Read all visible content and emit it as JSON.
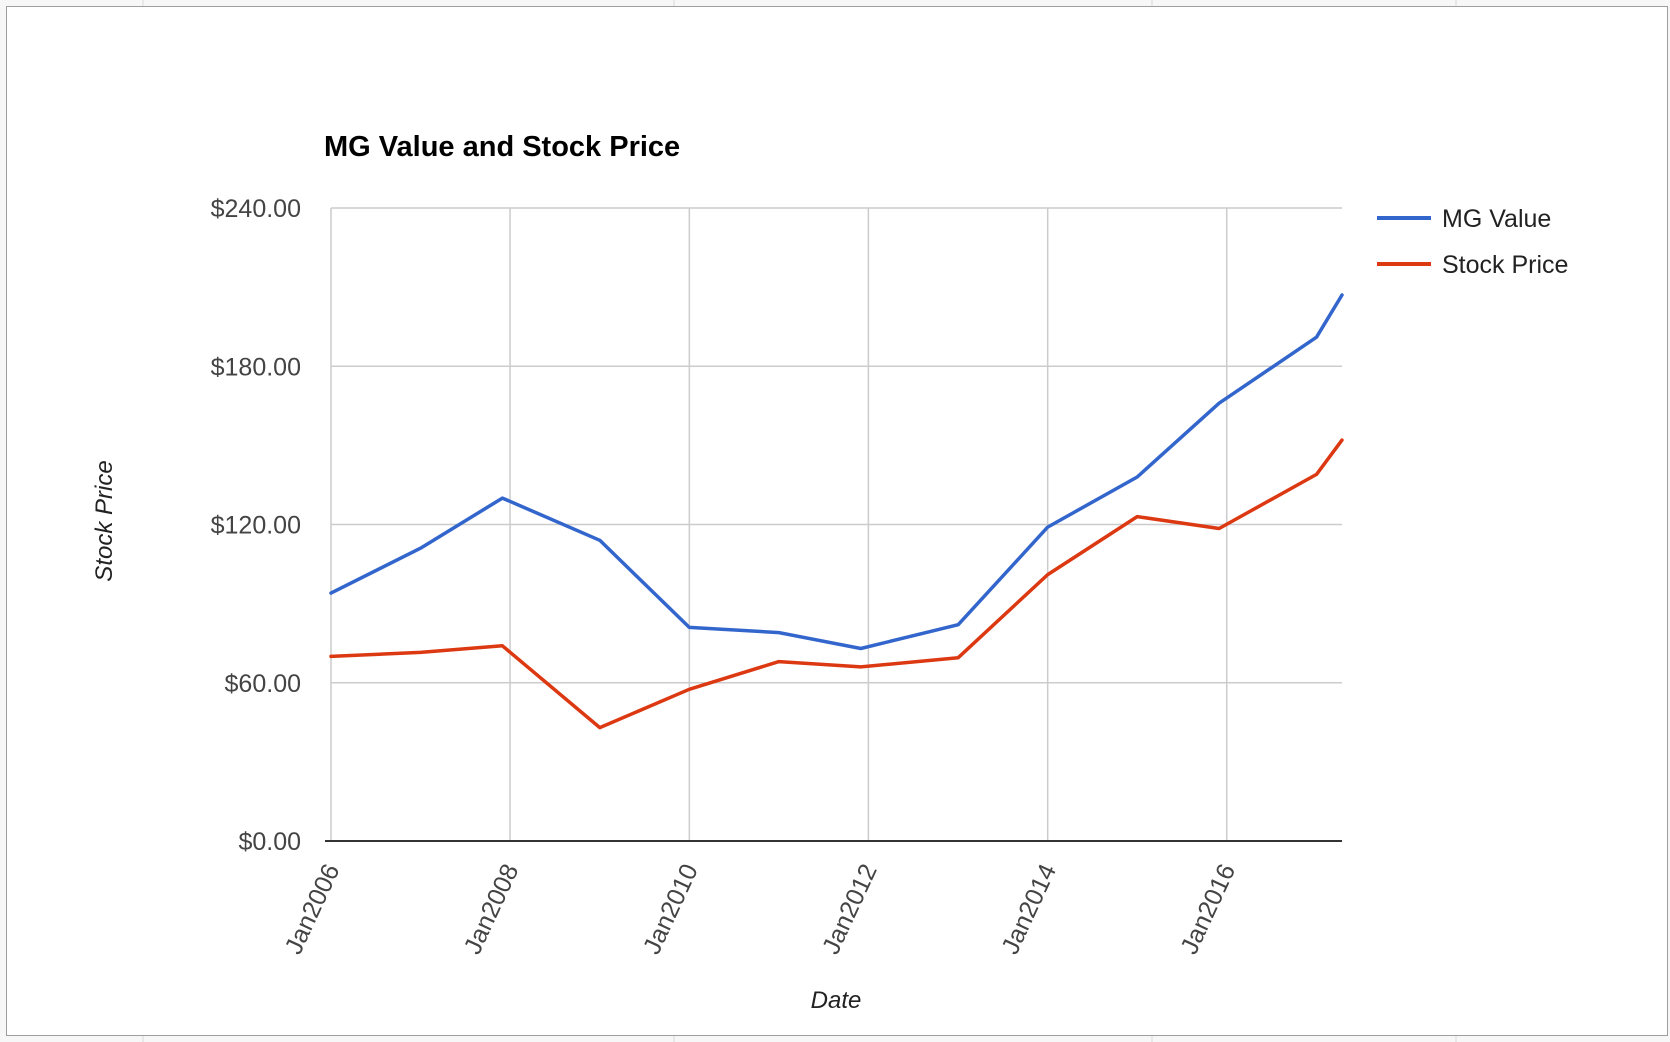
{
  "chart_data": {
    "type": "line",
    "title": "MG Value and Stock Price",
    "xlabel": "Date",
    "ylabel": "Stock Price",
    "x_ticks": [
      "Jan2006",
      "Jan2008",
      "Jan2010",
      "Jan2012",
      "Jan2014",
      "Jan2016"
    ],
    "y_ticks": [
      "$0.00",
      "$60.00",
      "$120.00",
      "$180.00",
      "$240.00"
    ],
    "ylim": [
      0,
      240
    ],
    "xlim": [
      "2006-01-01",
      "2017-04-15"
    ],
    "grid": true,
    "legend_position": "right",
    "x": [
      "2006-01-01",
      "2007-01-01",
      "2007-12-01",
      "2009-01-01",
      "2010-01-01",
      "2011-01-01",
      "2011-12-01",
      "2013-01-01",
      "2014-01-01",
      "2015-01-01",
      "2015-12-01",
      "2017-01-01",
      "2017-04-15"
    ],
    "series": [
      {
        "name": "MG Value",
        "color": "#3366cc",
        "values": [
          94,
          111,
          130,
          114,
          81,
          79,
          73,
          82,
          119,
          138,
          166,
          191,
          207
        ]
      },
      {
        "name": "Stock Price",
        "color": "#dc3912",
        "values": [
          70,
          71.5,
          74,
          43,
          57.5,
          68,
          66,
          69.5,
          101,
          123,
          118.5,
          139,
          152
        ]
      }
    ]
  },
  "colors": {
    "grid": "#cccccc",
    "axis": "#333333",
    "tick_text": "#444444",
    "title_text": "#000000"
  }
}
